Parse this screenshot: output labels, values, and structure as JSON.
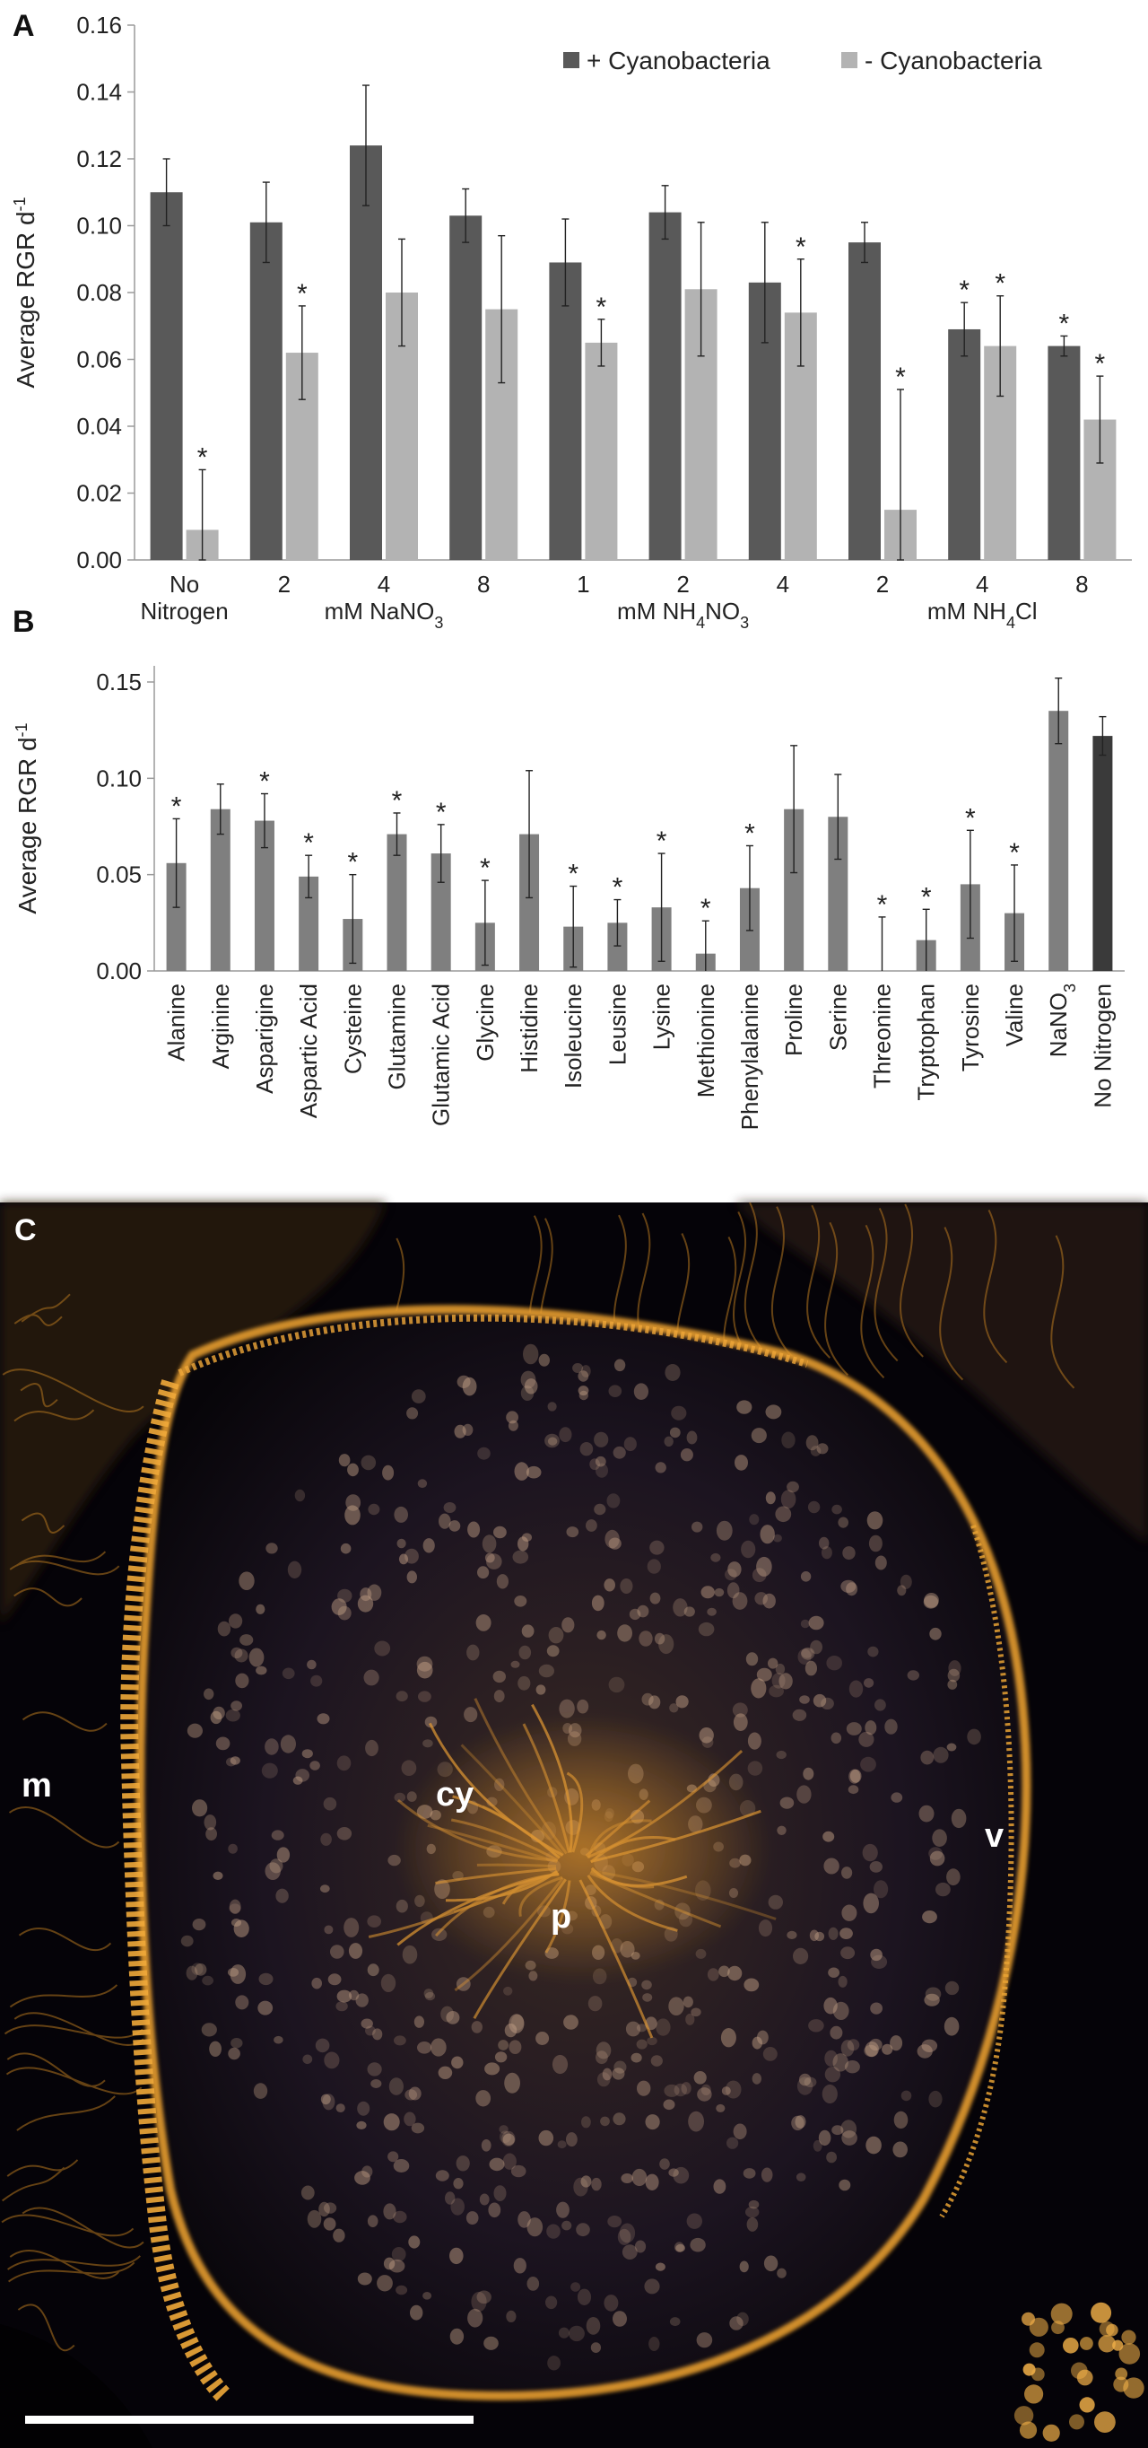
{
  "figure": {
    "panels": {
      "a": "A",
      "b": "B",
      "c": "C"
    },
    "micrograph": {
      "labels": {
        "cy": "cy",
        "p": "p",
        "m": "m",
        "v": "v"
      },
      "colors": {
        "background": "#050308",
        "tissue": "#c8801e",
        "cells": "#c9a68a",
        "scalebar": "#ffffff"
      }
    }
  },
  "chart_data": [
    {
      "type": "bar",
      "ylabel": "Average RGR d",
      "ylabel_superscript": "-1",
      "ylim": [
        0,
        0.16
      ],
      "yticks": [
        "0.00",
        "0.02",
        "0.04",
        "0.06",
        "0.08",
        "0.10",
        "0.12",
        "0.14",
        "0.16"
      ],
      "grid": false,
      "legend_placement": "top-right",
      "categories": [
        "No Nitrogen",
        "2",
        "4",
        "8",
        "1",
        "2",
        "4",
        "2",
        "4",
        "8"
      ],
      "category_lines": [
        [
          "No",
          "Nitrogen"
        ],
        [
          "2"
        ],
        [
          "4"
        ],
        [
          "8"
        ],
        [
          "1"
        ],
        [
          "2"
        ],
        [
          "4"
        ],
        [
          "2"
        ],
        [
          "4"
        ],
        [
          "8"
        ]
      ],
      "groups": [
        {
          "label": "mM NaNO",
          "sub": "3",
          "tail": ""
        },
        {
          "label": "mM NH",
          "sub": "4",
          "tail": "NO",
          "sub2": "3"
        },
        {
          "label": "mM NH",
          "sub": "4",
          "tail": "Cl"
        }
      ],
      "series": [
        {
          "name": "+ Cyanobacteria",
          "color": "#595959",
          "values": [
            0.11,
            0.101,
            0.124,
            0.103,
            0.089,
            0.104,
            0.083,
            0.095,
            0.069,
            0.064
          ],
          "errors": [
            0.01,
            0.012,
            0.018,
            0.008,
            0.013,
            0.008,
            0.018,
            0.006,
            0.008,
            0.003
          ],
          "significant": [
            false,
            false,
            false,
            false,
            false,
            false,
            false,
            false,
            true,
            true
          ]
        },
        {
          "name": "- Cyanobacteria",
          "color": "#b3b3b3",
          "values": [
            0.009,
            0.062,
            0.08,
            0.075,
            0.065,
            0.081,
            0.074,
            0.015,
            0.064,
            0.042
          ],
          "errors": [
            0.018,
            0.014,
            0.016,
            0.022,
            0.007,
            0.02,
            0.016,
            0.036,
            0.015,
            0.013
          ],
          "significant": [
            true,
            true,
            false,
            false,
            true,
            false,
            true,
            true,
            true,
            true
          ]
        }
      ],
      "significance_marker": "*"
    },
    {
      "type": "bar",
      "ylabel": "Average RGR d",
      "ylabel_superscript": "-1",
      "ylim": [
        0,
        0.15
      ],
      "yticks": [
        "0.00",
        "0.05",
        "0.10",
        "0.15"
      ],
      "grid": false,
      "categories": [
        "Alanine",
        "Arginine",
        "Asparigine",
        "Aspartic Acid",
        "Cysteine",
        "Glutamine",
        "Glutamic Acid",
        "Glycine",
        "Histidine",
        "Isoleucine",
        "Leusine",
        "Lysine",
        "Methionine",
        "Phenylalanine",
        "Proline",
        "Serine",
        "Threonine",
        "Tryptophan",
        "Tyrosine",
        "Valine",
        "NaNO3",
        "No Nitrogen"
      ],
      "category_subscripts": {
        "NaNO3": [
          "NaNO",
          "3"
        ]
      },
      "values": [
        0.056,
        0.084,
        0.078,
        0.049,
        0.027,
        0.071,
        0.061,
        0.025,
        0.071,
        0.023,
        0.025,
        0.033,
        0.009,
        0.043,
        0.084,
        0.08,
        0.0,
        0.016,
        0.045,
        0.03,
        0.135,
        0.122
      ],
      "errors": [
        0.023,
        0.013,
        0.014,
        0.011,
        0.023,
        0.011,
        0.015,
        0.022,
        0.033,
        0.021,
        0.012,
        0.028,
        0.017,
        0.022,
        0.033,
        0.022,
        0.028,
        0.016,
        0.028,
        0.025,
        0.017,
        0.01
      ],
      "significant": [
        true,
        false,
        true,
        true,
        true,
        true,
        true,
        true,
        false,
        true,
        true,
        true,
        true,
        true,
        false,
        false,
        true,
        true,
        true,
        true,
        false,
        false
      ],
      "colors": {
        "amino_acid": "#7f7f7f",
        "nano3": "#7f7f7f",
        "no_nitrogen": "#3a3a3a"
      },
      "significance_marker": "*"
    }
  ]
}
